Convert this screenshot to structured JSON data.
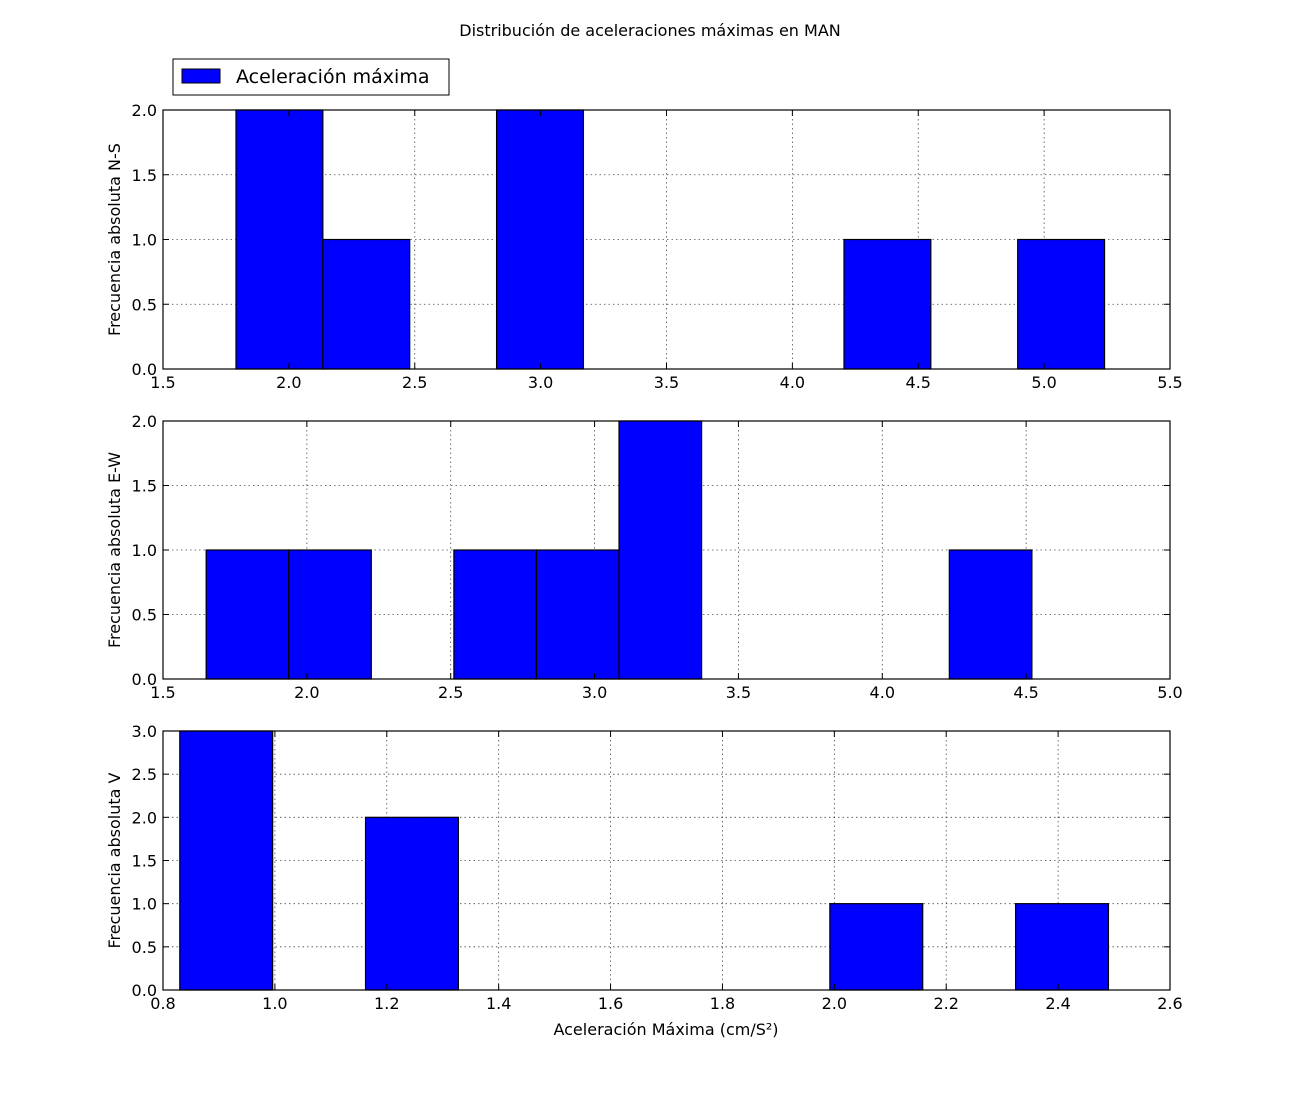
{
  "chart_data": {
    "title": "Distribución de aceleraciones máximas en MAN",
    "legend": {
      "label": "Aceleración máxima",
      "position": "upper-left",
      "color": "#0000ff"
    },
    "xlabel": "Aceleración Máxima (cm/S²)",
    "bar_color": "#0000ff",
    "grid": true,
    "panels": [
      {
        "type": "bar",
        "histogram": true,
        "ylabel": "Frecuencia absoluta N-S",
        "xlim": [
          1.5,
          5.5
        ],
        "ylim": [
          0,
          2
        ],
        "xticks": [
          "1.5",
          "2.0",
          "2.5",
          "3.0",
          "3.5",
          "4.0",
          "4.5",
          "5.0",
          "5.5"
        ],
        "yticks": [
          "0.0",
          "0.5",
          "1.0",
          "1.5",
          "2.0"
        ],
        "bins": [
          {
            "x0": 1.79,
            "x1": 2.135,
            "value": 2
          },
          {
            "x0": 2.135,
            "x1": 2.48,
            "value": 1
          },
          {
            "x0": 2.825,
            "x1": 3.17,
            "value": 2
          },
          {
            "x0": 4.205,
            "x1": 4.55,
            "value": 1
          },
          {
            "x0": 4.895,
            "x1": 5.24,
            "value": 1
          }
        ]
      },
      {
        "type": "bar",
        "histogram": true,
        "ylabel": "Frecuencia absoluta E-W",
        "xlim": [
          1.5,
          5.0
        ],
        "ylim": [
          0,
          2
        ],
        "xticks": [
          "1.5",
          "2.0",
          "2.5",
          "3.0",
          "3.5",
          "4.0",
          "4.5",
          "5.0"
        ],
        "yticks": [
          "0.0",
          "0.5",
          "1.0",
          "1.5",
          "2.0"
        ],
        "bins": [
          {
            "x0": 1.65,
            "x1": 1.937,
            "value": 1
          },
          {
            "x0": 1.937,
            "x1": 2.224,
            "value": 1
          },
          {
            "x0": 2.511,
            "x1": 2.798,
            "value": 1
          },
          {
            "x0": 2.798,
            "x1": 3.085,
            "value": 1
          },
          {
            "x0": 3.085,
            "x1": 3.372,
            "value": 2
          },
          {
            "x0": 4.233,
            "x1": 4.52,
            "value": 1
          }
        ]
      },
      {
        "type": "bar",
        "histogram": true,
        "ylabel": "Frecuencia absoluta V",
        "xlim": [
          0.8,
          2.6
        ],
        "ylim": [
          0,
          3
        ],
        "xticks": [
          "0.8",
          "1.0",
          "1.2",
          "1.4",
          "1.6",
          "1.8",
          "2.0",
          "2.2",
          "2.4",
          "2.6"
        ],
        "yticks": [
          "0.0",
          "0.5",
          "1.0",
          "1.5",
          "2.0",
          "2.5",
          "3.0"
        ],
        "bins": [
          {
            "x0": 0.83,
            "x1": 0.996,
            "value": 3
          },
          {
            "x0": 1.162,
            "x1": 1.328,
            "value": 2
          },
          {
            "x0": 1.992,
            "x1": 2.158,
            "value": 1
          },
          {
            "x0": 2.324,
            "x1": 2.49,
            "value": 1
          }
        ]
      }
    ]
  }
}
